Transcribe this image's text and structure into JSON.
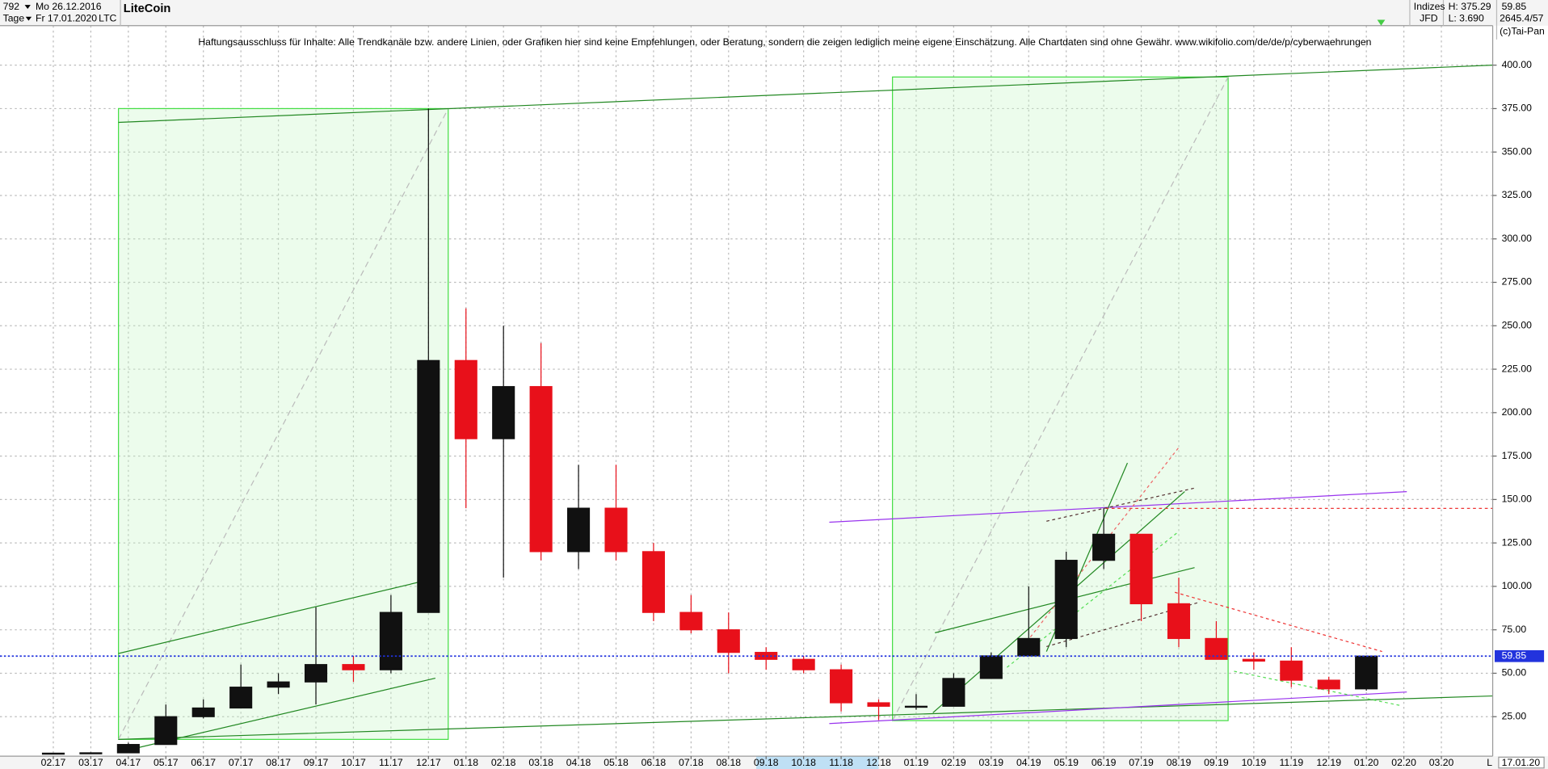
{
  "header": {
    "id": "792",
    "start_date": "Mo 26.12.2016",
    "period": "Tage",
    "end_date": "Fr 17.01.2020",
    "symbol": "LTC",
    "group": "Indizes",
    "source": "JFD",
    "high": "H: 375.29",
    "low": "L: 3.690",
    "count": "2645.4/57",
    "copyright": "(c)Tai-Pan",
    "disclaimer": "Haftungsausschluss für Inhalte: Alle Trendkanäle bzw. andere Linien, oder Grafiken hier sind keine Empfehlungen, oder Beratung, sondern die zeigen lediglich meine eigene Einschätzung. Alle Chartdaten sind ohne Gewähr.  www.wikifolio.com/de/de/p/cyberwaehrungen",
    "cursor_date": "17.01.20",
    "scale_mode": "L"
  },
  "chart_data": {
    "type": "candlestick",
    "title": "LiteCoin",
    "categories": [
      "02.17",
      "03.17",
      "04.17",
      "05.17",
      "06.17",
      "07.17",
      "08.17",
      "09.17",
      "10.17",
      "11.17",
      "12.17",
      "01.18",
      "02.18",
      "03.18",
      "04.18",
      "05.18",
      "06.18",
      "07.18",
      "08.18",
      "09.18",
      "10.18",
      "11.18",
      "12.18",
      "01.19",
      "02.19",
      "03.19",
      "04.19",
      "05.19",
      "06.19",
      "07.19",
      "08.19",
      "09.19",
      "10.19",
      "11.19",
      "12.19",
      "01.20",
      "02.20",
      "03.20"
    ],
    "open": [
      4,
      4,
      4.2,
      9,
      25,
      30,
      42,
      45,
      55,
      52,
      85,
      230,
      185,
      215,
      120,
      145,
      120,
      85,
      75,
      62,
      58,
      52,
      33,
      31,
      31,
      47,
      60,
      70,
      115,
      130,
      90,
      70,
      58,
      57,
      46,
      41,
      null,
      null
    ],
    "high": [
      4.2,
      4.5,
      10,
      32,
      35,
      55,
      50,
      88,
      60,
      95,
      375,
      260,
      250,
      240,
      170,
      170,
      125,
      95,
      85,
      65,
      60,
      55,
      35,
      38,
      50,
      62,
      100,
      120,
      145,
      130,
      105,
      80,
      62,
      65,
      48,
      60,
      null,
      null
    ],
    "low": [
      3.7,
      3.8,
      4,
      9,
      24,
      30,
      38,
      32,
      45,
      50,
      85,
      145,
      105,
      115,
      110,
      115,
      80,
      73,
      50,
      52,
      50,
      28,
      23,
      29,
      31,
      47,
      60,
      65,
      110,
      80,
      65,
      60,
      52,
      42,
      38,
      40,
      null,
      null
    ],
    "close": [
      4,
      4.2,
      9,
      25,
      30,
      42,
      45,
      55,
      52,
      85,
      230,
      185,
      215,
      120,
      145,
      120,
      85,
      75,
      62,
      58,
      52,
      33,
      31,
      31,
      47,
      60,
      70,
      115,
      130,
      90,
      70,
      58,
      57,
      46,
      41,
      59.85,
      null,
      null
    ],
    "up_color": "#111111",
    "down_color": "#e8101a",
    "ylim": [
      2.27,
      422.73
    ],
    "yticks": [
      {
        "value": 25,
        "label": "25.00"
      },
      {
        "value": 50,
        "label": "50.00"
      },
      {
        "value": 75,
        "label": "75.00"
      },
      {
        "value": 100,
        "label": "100.00"
      },
      {
        "value": 125,
        "label": "125.00"
      },
      {
        "value": 150,
        "label": "150.00"
      },
      {
        "value": 175,
        "label": "175.00"
      },
      {
        "value": 200,
        "label": "200.00"
      },
      {
        "value": 225,
        "label": "225.00"
      },
      {
        "value": 250,
        "label": "250.00"
      },
      {
        "value": 275,
        "label": "275.00"
      },
      {
        "value": 300,
        "label": "300.00"
      },
      {
        "value": 325,
        "label": "325.00"
      },
      {
        "value": 350,
        "label": "350.00"
      },
      {
        "value": 375,
        "label": "375.00"
      },
      {
        "value": 400,
        "label": "400.00"
      }
    ],
    "grid": true,
    "last_price": 59.85,
    "last_price_color": "#2233dd"
  }
}
